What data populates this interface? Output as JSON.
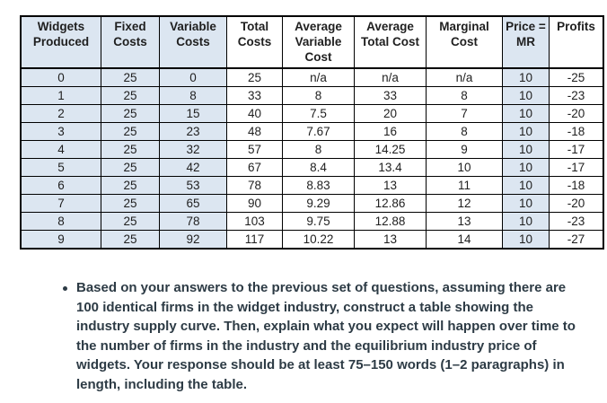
{
  "colors": {
    "shaded_column_bg": "#dce6f1",
    "table_border": "#000000",
    "table_text": "#1f1f1f",
    "body_text": "#2d3b45"
  },
  "table": {
    "columns": [
      {
        "label": "Widgets Produced",
        "shaded": true
      },
      {
        "label": "Fixed Costs",
        "shaded": true
      },
      {
        "label": "Variable Costs",
        "shaded": true
      },
      {
        "label": "Total Costs",
        "shaded": false
      },
      {
        "label": "Average Variable Cost",
        "shaded": false
      },
      {
        "label": "Average Total Cost",
        "shaded": false
      },
      {
        "label": "Marginal Cost",
        "shaded": false
      },
      {
        "label": "Price = MR",
        "shaded": true
      },
      {
        "label": "Profits",
        "shaded": false
      }
    ],
    "rows": [
      [
        "0",
        "25",
        "0",
        "25",
        "n/a",
        "n/a",
        "n/a",
        "10",
        "-25"
      ],
      [
        "1",
        "25",
        "8",
        "33",
        "8",
        "33",
        "8",
        "10",
        "-23"
      ],
      [
        "2",
        "25",
        "15",
        "40",
        "7.5",
        "20",
        "7",
        "10",
        "-20"
      ],
      [
        "3",
        "25",
        "23",
        "48",
        "7.67",
        "16",
        "8",
        "10",
        "-18"
      ],
      [
        "4",
        "25",
        "32",
        "57",
        "8",
        "14.25",
        "9",
        "10",
        "-17"
      ],
      [
        "5",
        "25",
        "42",
        "67",
        "8.4",
        "13.4",
        "10",
        "10",
        "-17"
      ],
      [
        "6",
        "25",
        "53",
        "78",
        "8.83",
        "13",
        "11",
        "10",
        "-18"
      ],
      [
        "7",
        "25",
        "65",
        "90",
        "9.29",
        "12.86",
        "12",
        "10",
        "-20"
      ],
      [
        "8",
        "25",
        "78",
        "103",
        "9.75",
        "12.88",
        "13",
        "10",
        "-23"
      ],
      [
        "9",
        "25",
        "92",
        "117",
        "10.22",
        "13",
        "14",
        "10",
        "-27"
      ]
    ]
  },
  "bullet": {
    "text": "Based on your answers to the previous set of questions, assuming there are 100 identical firms in the widget industry, construct a table showing the industry supply curve. Then, explain what you expect will happen over time to the number of firms in the industry and the equilibrium industry price of widgets. Your response should be at least 75–150 words (1–2 paragraphs) in length, including the table."
  }
}
